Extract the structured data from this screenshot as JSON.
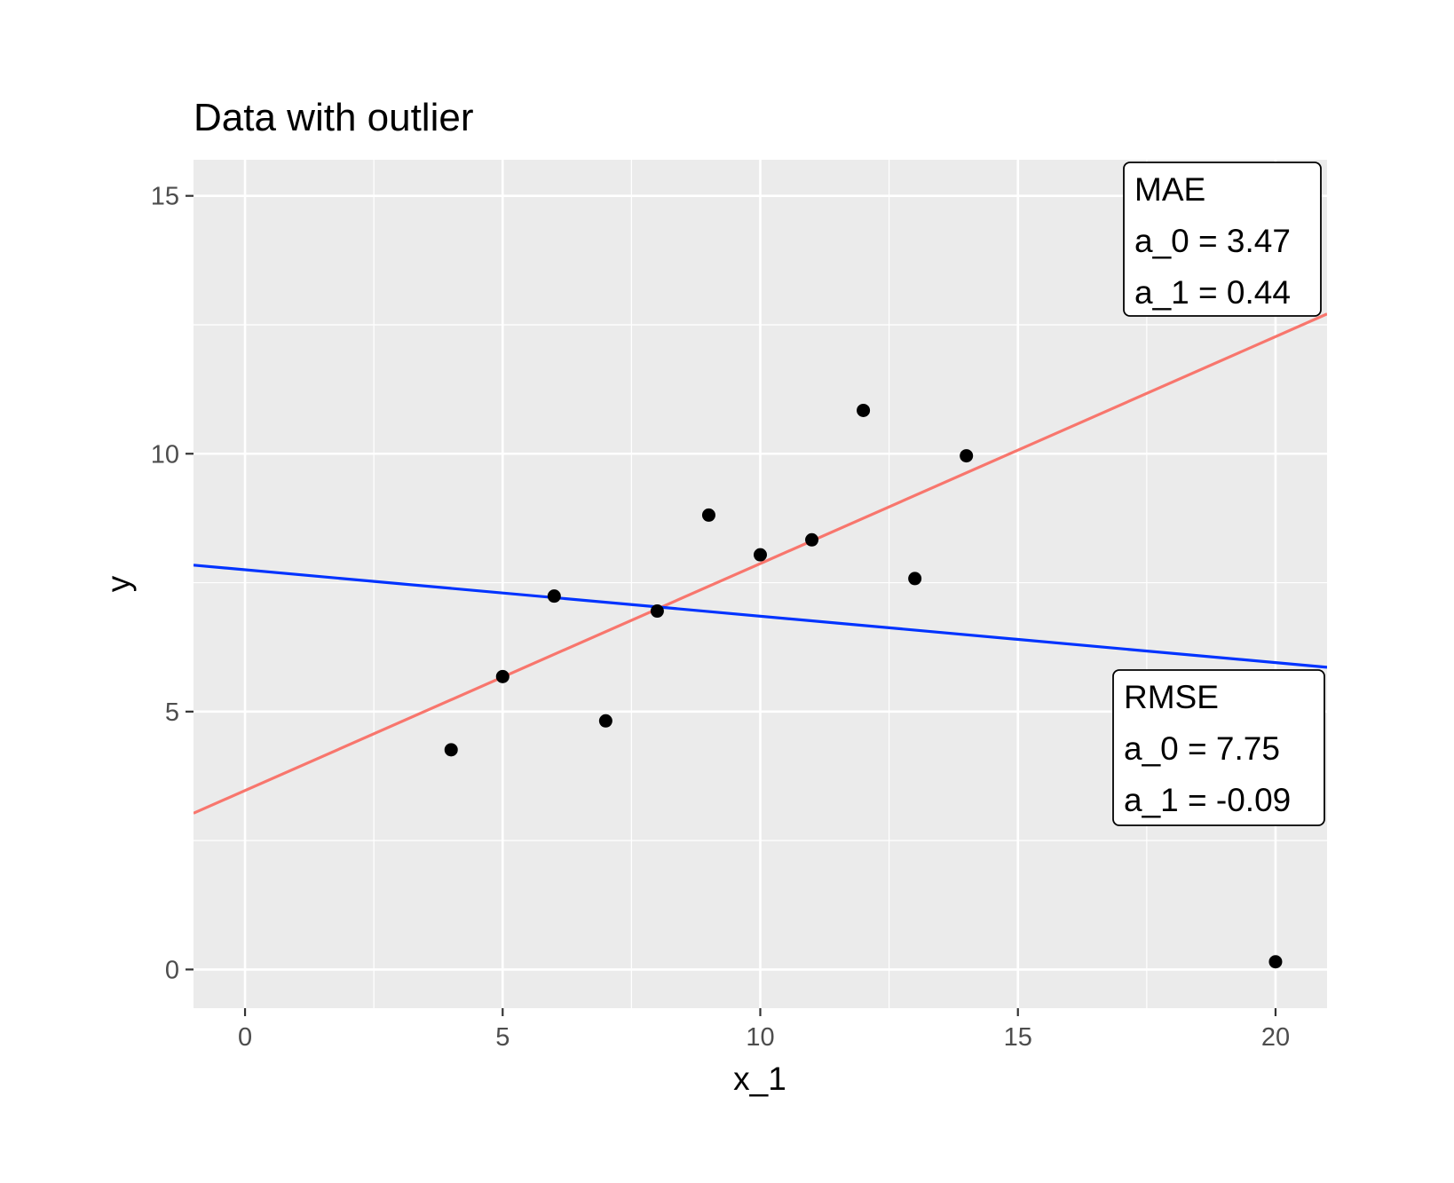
{
  "chart_data": {
    "type": "scatter",
    "title": "Data with outlier",
    "xlabel": "x_1",
    "ylabel": "y",
    "xlim": [
      -1,
      21
    ],
    "ylim": [
      -0.75,
      15.7
    ],
    "x_ticks": [
      0,
      5,
      10,
      15,
      20
    ],
    "y_ticks": [
      0,
      5,
      10,
      15
    ],
    "x_tick_labels": [
      "0",
      "5",
      "10",
      "15",
      "20"
    ],
    "y_tick_labels": [
      "0",
      "5",
      "10",
      "15"
    ],
    "grid": true,
    "points": [
      {
        "x": 4,
        "y": 4.26
      },
      {
        "x": 5,
        "y": 5.68
      },
      {
        "x": 6,
        "y": 7.24
      },
      {
        "x": 7,
        "y": 4.82
      },
      {
        "x": 8,
        "y": 6.95
      },
      {
        "x": 9,
        "y": 8.81
      },
      {
        "x": 10,
        "y": 8.04
      },
      {
        "x": 11,
        "y": 8.33
      },
      {
        "x": 12,
        "y": 10.84
      },
      {
        "x": 13,
        "y": 7.58
      },
      {
        "x": 14,
        "y": 9.96
      },
      {
        "x": 20,
        "y": 0.15
      }
    ],
    "lines": [
      {
        "method": "MAE",
        "intercept": 3.47,
        "slope": 0.44,
        "color": "#F8766D"
      },
      {
        "method": "RMSE",
        "intercept": 7.75,
        "slope": -0.09,
        "color": "#0033FF"
      }
    ],
    "labels": [
      {
        "lines": [
          "MAE",
          "a_0 = 3.47",
          "a_1 = 0.44"
        ],
        "position": "top-right"
      },
      {
        "lines": [
          "RMSE",
          "a_0 = 7.75",
          "a_1 = -0.09"
        ],
        "position": "right-middle"
      }
    ],
    "colors": {
      "panel": "#EBEBEB",
      "grid": "#FFFFFF",
      "point": "#000000",
      "tick": "#4d4d4d"
    }
  }
}
